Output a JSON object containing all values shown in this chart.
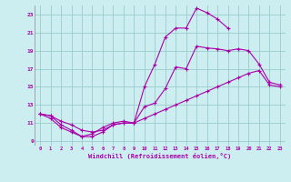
{
  "xlabel": "Windchill (Refroidissement éolien,°C)",
  "xlim": [
    -0.5,
    23.5
  ],
  "ylim": [
    8.5,
    24.0
  ],
  "xticks": [
    0,
    1,
    2,
    3,
    4,
    5,
    6,
    7,
    8,
    9,
    10,
    11,
    12,
    13,
    14,
    15,
    16,
    17,
    18,
    19,
    20,
    21,
    22,
    23
  ],
  "yticks": [
    9,
    11,
    13,
    15,
    17,
    19,
    21,
    23
  ],
  "bg_color": "#cceef0",
  "line_color": "#aa00aa",
  "grid_color": "#99cccc",
  "line1_x": [
    0,
    1,
    2,
    3,
    4,
    5,
    6,
    7,
    8,
    9,
    10,
    11,
    12,
    13,
    14,
    15,
    16,
    17,
    18,
    19,
    20,
    21,
    22,
    23
  ],
  "line1_y": [
    12.0,
    11.8,
    11.2,
    10.8,
    10.2,
    10.0,
    10.2,
    10.8,
    11.0,
    11.0,
    11.5,
    12.0,
    12.5,
    13.0,
    13.5,
    14.0,
    14.5,
    15.0,
    15.5,
    16.0,
    16.5,
    16.8,
    15.2,
    15.0
  ],
  "line2_x": [
    0,
    1,
    2,
    3,
    4,
    5,
    6,
    7,
    8,
    9,
    10,
    11,
    12,
    13,
    14,
    15,
    16,
    17,
    18
  ],
  "line2_y": [
    12.0,
    11.8,
    10.8,
    10.2,
    9.5,
    9.5,
    10.0,
    10.8,
    11.0,
    11.0,
    15.0,
    17.5,
    20.5,
    21.5,
    21.5,
    23.7,
    23.2,
    22.5,
    21.5
  ],
  "line3_x": [
    0,
    1,
    2,
    3,
    4,
    5,
    6,
    7,
    8,
    9,
    10,
    11,
    12,
    13,
    14,
    15,
    16,
    17,
    18,
    19,
    20,
    21,
    22,
    23
  ],
  "line3_y": [
    12.0,
    11.5,
    10.5,
    10.0,
    9.5,
    9.8,
    10.5,
    11.0,
    11.2,
    11.0,
    12.8,
    13.2,
    14.8,
    17.2,
    17.0,
    19.5,
    19.3,
    19.2,
    19.0,
    19.2,
    19.0,
    17.5,
    15.5,
    15.2
  ]
}
